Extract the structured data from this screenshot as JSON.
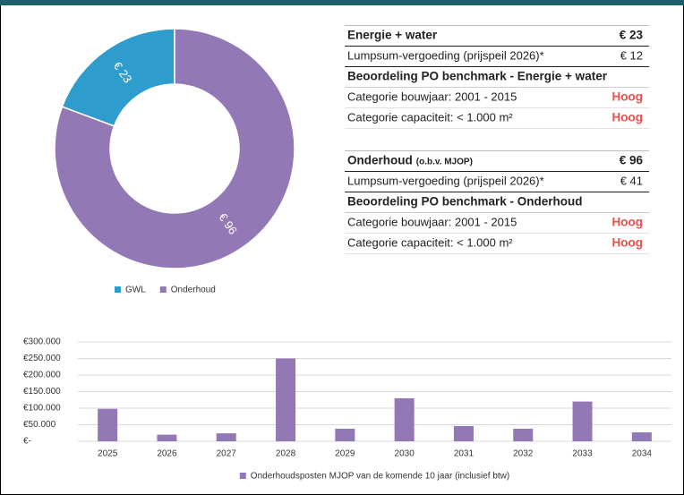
{
  "chart_data": [
    {
      "type": "donut",
      "categories": [
        "GWL",
        "Onderhoud"
      ],
      "values": [
        23,
        96
      ],
      "value_labels": [
        "€ 23",
        "€ 96"
      ],
      "colors": [
        "#2e9ccc",
        "#9278b4"
      ],
      "legend": "bottom"
    },
    {
      "type": "bar",
      "categories": [
        "2025",
        "2026",
        "2027",
        "2028",
        "2029",
        "2030",
        "2031",
        "2032",
        "2033",
        "2034"
      ],
      "series": [
        {
          "name": "Onderhoudsposten MJOP van de komende 10 jaar (inclusief btw)",
          "color": "#9278b4",
          "values": [
            98000,
            20000,
            24000,
            250000,
            38000,
            130000,
            46000,
            38000,
            120000,
            27000
          ]
        }
      ],
      "ylim": [
        0,
        300000
      ],
      "yticks": [
        {
          "value": 0,
          "label": "€-"
        },
        {
          "value": 50000,
          "label": "€50.000"
        },
        {
          "value": 100000,
          "label": "€100.000"
        },
        {
          "value": 150000,
          "label": "€150.000"
        },
        {
          "value": 200000,
          "label": "€200.000"
        },
        {
          "value": 250000,
          "label": "€250.000"
        },
        {
          "value": 300000,
          "label": "€300.000"
        }
      ],
      "grid": true,
      "legend": "bottom"
    }
  ],
  "table": {
    "sections": [
      {
        "title": "Energie + water",
        "value": "€ 23",
        "rows": [
          [
            "Lumpsum-vergoeding (prijspeil 2026)*",
            "€ 12"
          ]
        ],
        "benchmark": "Beoordeling PO benchmark - Energie + water",
        "ratings": [
          [
            "Categorie bouwjaar: 2001 - 2015",
            "Hoog"
          ],
          [
            "Categorie capaciteit: < 1.000 m²",
            "Hoog"
          ]
        ]
      },
      {
        "title": "Onderhoud",
        "note": "(o.b.v. MJOP)",
        "value": "€ 96",
        "rows": [
          [
            "Lumpsum-vergoeding (prijspeil 2026)*",
            "€ 41"
          ]
        ],
        "benchmark": "Beoordeling PO benchmark - Onderhoud",
        "ratings": [
          [
            "Categorie bouwjaar: 2001 - 2015",
            "Hoog"
          ],
          [
            "Categorie capaciteit: < 1.000 m²",
            "Hoog"
          ]
        ]
      }
    ]
  }
}
